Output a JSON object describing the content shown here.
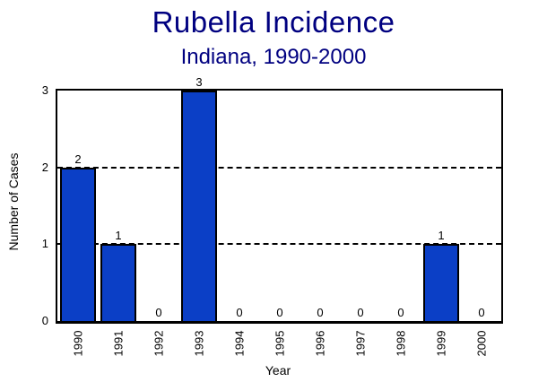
{
  "page": {
    "background_color": "#ffffff",
    "text_color": "#000000",
    "title_color": "#000080"
  },
  "header": {
    "title": "Rubella Incidence",
    "subtitle": "Indiana, 1990-2000"
  },
  "chart_data": {
    "type": "bar",
    "title": "Rubella Incidence",
    "subtitle": "Indiana, 1990-2000",
    "categories": [
      "1990",
      "1991",
      "1992",
      "1993",
      "1994",
      "1995",
      "1996",
      "1997",
      "1998",
      "1999",
      "2000"
    ],
    "values": [
      2,
      1,
      0,
      3,
      0,
      0,
      0,
      0,
      0,
      1,
      0
    ],
    "xlabel": "Year",
    "ylabel": "Number of Cases",
    "ylim": [
      0,
      3
    ],
    "yticks": [
      0,
      1,
      2,
      3
    ],
    "gridlines": {
      "style": "dashed",
      "at_values": [
        1,
        2
      ],
      "color": "#000000"
    },
    "bar_color": "#0B3FC6",
    "bar_border_color": "#000000",
    "value_labels_shown": true,
    "legend_position": "none",
    "x_tick_rotation_deg": 90,
    "plot_border": "box"
  }
}
